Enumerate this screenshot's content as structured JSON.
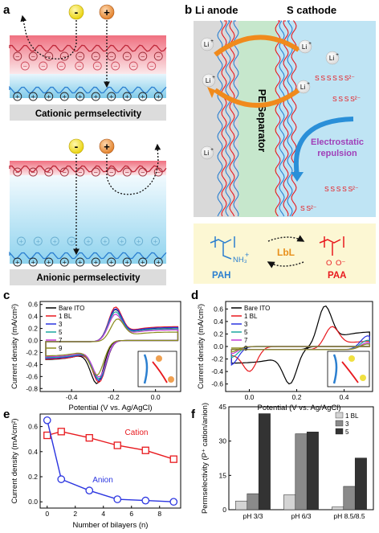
{
  "panels": {
    "a": "a",
    "b": "b",
    "c": "c",
    "d": "d",
    "e": "e",
    "f": "f"
  },
  "panel_a": {
    "caption_top": "Cationic permselectivity",
    "caption_bottom": "Anionic permselectivity",
    "minus": "-",
    "plus": "+"
  },
  "panel_b": {
    "li_anode": "Li anode",
    "s_cathode": "S cathode",
    "separator": "PE Separator",
    "li_ion": "Li",
    "li_charge": "+",
    "electrostatic": "Electrostatic\nrepulsion",
    "polysulfide_labels": [
      "S S S S S S²⁻",
      "S S S S²⁻",
      "S S S S S²⁻",
      "S S²⁻"
    ],
    "pah": "PAH",
    "paa": "PAA",
    "lbl": "LbL",
    "nh3": "NH₃",
    "nh3_charge": "+",
    "coo_o": "O",
    "coo_ominus": "O⁻"
  },
  "chart_data": [
    {
      "panel": "c",
      "type": "line",
      "xlabel": "Potential (V vs. Ag/AgCl)",
      "ylabel": "Current density (mA/cm²)",
      "xlim": [
        -0.55,
        0.12
      ],
      "ylim": [
        -0.85,
        0.65
      ],
      "xticks": [
        -0.4,
        -0.2,
        0.0
      ],
      "yticks": [
        -0.8,
        -0.6,
        -0.4,
        -0.2,
        0.0,
        0.2,
        0.4,
        0.6
      ],
      "series": [
        {
          "name": "Bare ITO",
          "color": "#000000",
          "anodic_peak": [
            -0.19,
            0.52
          ],
          "cathodic_peak": [
            -0.28,
            -0.72
          ]
        },
        {
          "name": "1 BL",
          "color": "#e8191e",
          "anodic_peak": [
            -0.19,
            0.56
          ],
          "cathodic_peak": [
            -0.27,
            -0.7
          ]
        },
        {
          "name": "3",
          "color": "#2b35e0",
          "anodic_peak": [
            -0.19,
            0.53
          ],
          "cathodic_peak": [
            -0.27,
            -0.67
          ]
        },
        {
          "name": "5",
          "color": "#1aa6a0",
          "anodic_peak": [
            -0.19,
            0.48
          ],
          "cathodic_peak": [
            -0.27,
            -0.64
          ]
        },
        {
          "name": "7",
          "color": "#c23bd6",
          "anodic_peak": [
            -0.19,
            0.44
          ],
          "cathodic_peak": [
            -0.27,
            -0.61
          ]
        },
        {
          "name": "9",
          "color": "#8a8a1e",
          "anodic_peak": [
            -0.18,
            0.36
          ],
          "cathodic_peak": [
            -0.28,
            -0.58
          ]
        }
      ]
    },
    {
      "panel": "d",
      "type": "line",
      "xlabel": "Potential (V vs. Ag/AgCl)",
      "ylabel": "Current density (mA/cm²)",
      "xlim": [
        -0.1,
        0.52
      ],
      "ylim": [
        -0.72,
        0.72
      ],
      "xticks": [
        0.0,
        0.2,
        0.4
      ],
      "yticks": [
        -0.6,
        -0.4,
        -0.2,
        0.0,
        0.2,
        0.4,
        0.6
      ],
      "series": [
        {
          "name": "Bare ITO",
          "color": "#000000",
          "anodic_peak": [
            0.32,
            0.65
          ],
          "cathodic_peak": [
            0.17,
            -0.6
          ]
        },
        {
          "name": "1 BL",
          "color": "#e8191e",
          "anodic_peak": [
            0.35,
            0.32
          ],
          "cathodic_peak": [
            0.0,
            -0.4
          ]
        },
        {
          "name": "3",
          "color": "#2b35e0",
          "anodic_peak": [
            0.5,
            0.17
          ],
          "cathodic_peak": [
            -0.08,
            -0.3
          ]
        },
        {
          "name": "5",
          "color": "#1aa6a0",
          "anodic_peak": [
            0.5,
            0.1
          ],
          "cathodic_peak": [
            -0.08,
            -0.18
          ]
        },
        {
          "name": "7",
          "color": "#c23bd6",
          "anodic_peak": [
            0.5,
            0.06
          ],
          "cathodic_peak": [
            -0.08,
            -0.12
          ]
        },
        {
          "name": "9",
          "color": "#8a8a1e",
          "anodic_peak": [
            0.5,
            0.04
          ],
          "cathodic_peak": [
            -0.08,
            -0.09
          ]
        }
      ]
    },
    {
      "panel": "e",
      "type": "line",
      "xlabel": "Number of bilayers (n)",
      "ylabel": "Current density (mA/cm²)",
      "xlim": [
        -0.5,
        9.5
      ],
      "ylim": [
        -0.05,
        0.7
      ],
      "xticks": [
        0,
        2,
        4,
        6,
        8
      ],
      "yticks": [
        0.0,
        0.2,
        0.4,
        0.6
      ],
      "categories": [
        0,
        1,
        3,
        5,
        7,
        9
      ],
      "series": [
        {
          "name": "Cation",
          "color": "#e8191e",
          "marker": "square",
          "values": [
            0.53,
            0.56,
            0.51,
            0.45,
            0.41,
            0.34
          ]
        },
        {
          "name": "Anion",
          "color": "#2b35e0",
          "marker": "circle",
          "values": [
            0.65,
            0.18,
            0.09,
            0.02,
            0.01,
            0.0
          ]
        }
      ]
    },
    {
      "panel": "f",
      "type": "bar",
      "ylabel": "Permselectivity (P⁺ cation/anion)",
      "ylim": [
        0,
        45
      ],
      "yticks": [
        0,
        15,
        30,
        45
      ],
      "categories": [
        "pH 3/3",
        "pH 6/3",
        "pH 8.5/8.5"
      ],
      "series": [
        {
          "name": "1 BL",
          "color": "#d4d4d4",
          "values": [
            3.8,
            6.5,
            1.2
          ]
        },
        {
          "name": "3",
          "color": "#8a8a8a",
          "values": [
            7.0,
            33.2,
            10.2
          ]
        },
        {
          "name": "5",
          "color": "#333333",
          "values": [
            42.0,
            34.0,
            22.6
          ]
        }
      ]
    }
  ]
}
